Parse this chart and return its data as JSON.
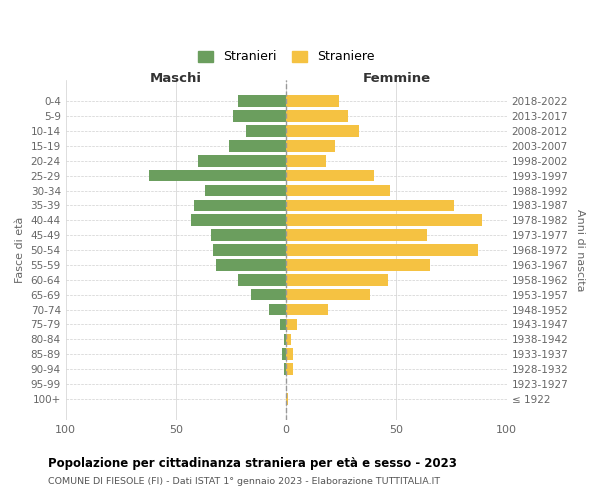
{
  "age_groups": [
    "0-4",
    "5-9",
    "10-14",
    "15-19",
    "20-24",
    "25-29",
    "30-34",
    "35-39",
    "40-44",
    "45-49",
    "50-54",
    "55-59",
    "60-64",
    "65-69",
    "70-74",
    "75-79",
    "80-84",
    "85-89",
    "90-94",
    "95-99",
    "100+"
  ],
  "birth_years": [
    "2018-2022",
    "2013-2017",
    "2008-2012",
    "2003-2007",
    "1998-2002",
    "1993-1997",
    "1988-1992",
    "1983-1987",
    "1978-1982",
    "1973-1977",
    "1968-1972",
    "1963-1967",
    "1958-1962",
    "1953-1957",
    "1948-1952",
    "1943-1947",
    "1938-1942",
    "1933-1937",
    "1928-1932",
    "1923-1927",
    "≤ 1922"
  ],
  "maschi": [
    22,
    24,
    18,
    26,
    40,
    62,
    37,
    42,
    43,
    34,
    33,
    32,
    22,
    16,
    8,
    3,
    1,
    2,
    1,
    0,
    0
  ],
  "femmine": [
    24,
    28,
    33,
    22,
    18,
    40,
    47,
    76,
    89,
    64,
    87,
    65,
    46,
    38,
    19,
    5,
    2,
    3,
    3,
    0,
    1
  ],
  "male_color": "#6b9e5e",
  "female_color": "#f5c242",
  "background_color": "#ffffff",
  "grid_color": "#d0d0d0",
  "title": "Popolazione per cittadinanza straniera per età e sesso - 2023",
  "subtitle": "COMUNE DI FIESOLE (FI) - Dati ISTAT 1° gennaio 2023 - Elaborazione TUTTITALIA.IT",
  "xlabel_left": "Maschi",
  "xlabel_right": "Femmine",
  "ylabel_left": "Fasce di età",
  "ylabel_right": "Anni di nascita",
  "xlim": 100,
  "legend_maschi": "Stranieri",
  "legend_femmine": "Straniere"
}
